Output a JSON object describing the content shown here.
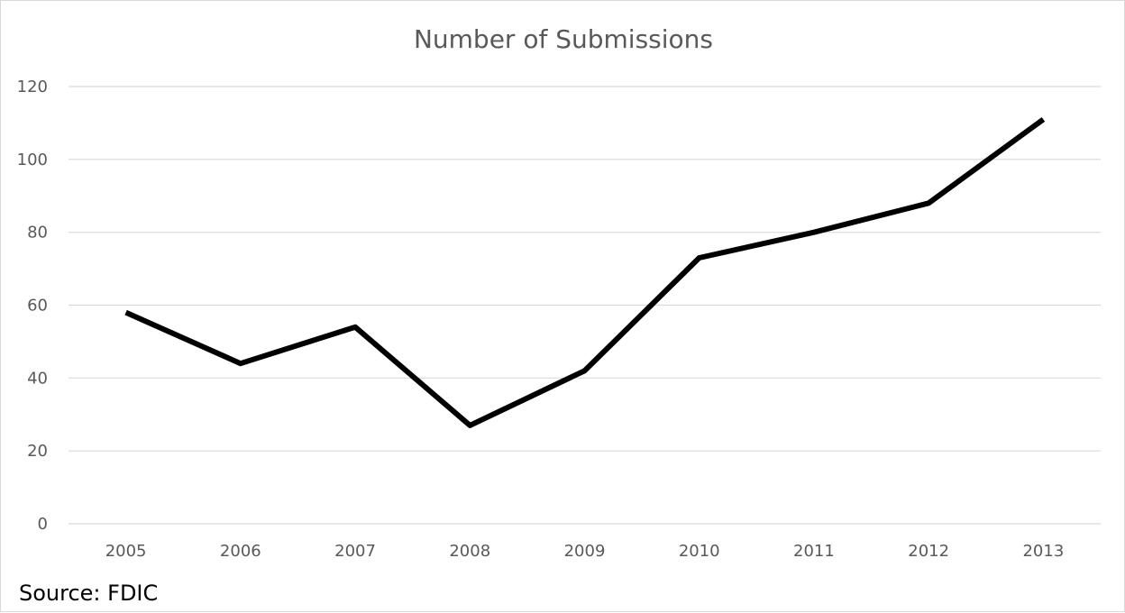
{
  "chart_data": {
    "type": "line",
    "title": "Number of Submissions",
    "x": [
      "2005",
      "2006",
      "2007",
      "2008",
      "2009",
      "2010",
      "2011",
      "2012",
      "2013"
    ],
    "series": [
      {
        "values": [
          58,
          44,
          54,
          27,
          42,
          73,
          80,
          88,
          111
        ]
      }
    ],
    "ylim": [
      0,
      120
    ],
    "yticks": [
      0,
      20,
      40,
      60,
      80,
      100,
      120
    ],
    "grid": true,
    "legend": "none",
    "line_color": "#000000",
    "grid_color": "#d9d9d9"
  },
  "source": "Source: FDIC"
}
